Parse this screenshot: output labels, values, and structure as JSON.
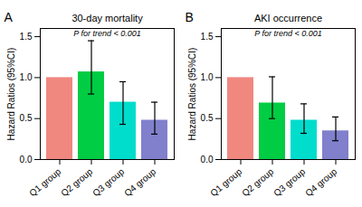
{
  "chart_data": [
    {
      "type": "bar",
      "panel_label": "A",
      "title": "30-day mortality",
      "annotation": "P for trend < 0.001",
      "categories": [
        "Q1 group",
        "Q2 group",
        "Q3 group",
        "Q4 group"
      ],
      "values": [
        1.0,
        1.07,
        0.7,
        0.48
      ],
      "errors_low": [
        0.0,
        0.27,
        0.27,
        0.17
      ],
      "errors_high": [
        0.0,
        0.38,
        0.25,
        0.22
      ],
      "colors": [
        "#F08880",
        "#00CC44",
        "#00DDCC",
        "#8080CC"
      ],
      "ylabel": "Hazard Ratios (95%CI)",
      "ylim": [
        0,
        1.6
      ],
      "yticks": [
        {
          "value": 0,
          "label": "0.0"
        },
        0.5,
        {
          "value": 1,
          "label": "1.0"
        },
        1.5
      ],
      "grid": false
    },
    {
      "type": "bar",
      "panel_label": "B",
      "title": "AKI occurrence",
      "annotation": "P for trend < 0.001",
      "categories": [
        "Q1 group",
        "Q2 group",
        "Q3 group",
        "Q4 group"
      ],
      "values": [
        1.0,
        0.69,
        0.48,
        0.35
      ],
      "errors_low": [
        0.0,
        0.19,
        0.16,
        0.12
      ],
      "errors_high": [
        0.0,
        0.32,
        0.2,
        0.17
      ],
      "colors": [
        "#F08880",
        "#00CC44",
        "#00DDCC",
        "#8080CC"
      ],
      "ylabel": "Hazard Ratios (95%CI)",
      "ylim": [
        0,
        1.6
      ],
      "yticks": [
        {
          "value": 0,
          "label": "0.0"
        },
        0.5,
        {
          "value": 1,
          "label": "1.0"
        },
        1.5
      ],
      "grid": false
    }
  ]
}
